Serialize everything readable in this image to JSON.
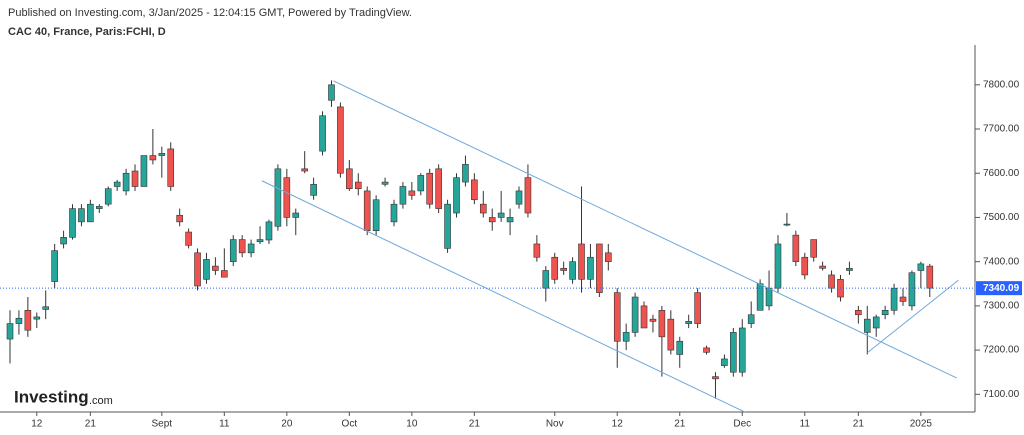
{
  "chart_data": {
    "type": "candlestick",
    "header": "Published on Investing.com, 3/Jan/2025 - 12:04:15 GMT, Powered by TradingView.",
    "title": "CAC 40, France, Paris:FCHI, D",
    "logo": "Investing",
    "logo_suffix": ".com",
    "categories": [
      null,
      null,
      null,
      "12",
      null,
      null,
      null,
      null,
      null,
      "21",
      null,
      null,
      null,
      null,
      null,
      null,
      null,
      "Sept",
      null,
      null,
      null,
      null,
      null,
      null,
      "11",
      null,
      null,
      null,
      null,
      null,
      null,
      "20",
      null,
      null,
      null,
      null,
      null,
      null,
      "Oct",
      null,
      null,
      null,
      null,
      null,
      null,
      "10",
      null,
      null,
      null,
      null,
      null,
      null,
      "21",
      null,
      null,
      null,
      null,
      null,
      null,
      null,
      null,
      "Nov",
      null,
      null,
      null,
      null,
      null,
      null,
      "12",
      null,
      null,
      null,
      null,
      null,
      null,
      "21",
      null,
      null,
      null,
      null,
      null,
      null,
      "Dec",
      null,
      null,
      null,
      null,
      null,
      null,
      "11",
      null,
      null,
      null,
      null,
      null,
      "21",
      null,
      null,
      null,
      null,
      null,
      null,
      "2025",
      null
    ],
    "open": [
      7225,
      7260,
      7290,
      7270,
      7292,
      7355,
      7440,
      7455,
      7490,
      7490,
      7520,
      7530,
      7570,
      7560,
      7605,
      7570,
      7640,
      7640,
      7655,
      7505,
      7467,
      7420,
      7360,
      7390,
      7380,
      7400,
      7450,
      7420,
      7445,
      7449,
      7480,
      7590,
      7500,
      7610,
      7550,
      7650,
      7765,
      7750,
      7610,
      7580,
      7560,
      7470,
      7575,
      7490,
      7530,
      7560,
      7560,
      7600,
      7610,
      7430,
      7510,
      7580,
      7585,
      7530,
      7500,
      7500,
      7490,
      7530,
      7590,
      7440,
      7340,
      7410,
      7385,
      7360,
      7440,
      7360,
      7440,
      7420,
      7330,
      7220,
      7240,
      7300,
      7270,
      7290,
      7270,
      7190,
      7260,
      7330,
      7205,
      7140,
      7165,
      7150,
      7150,
      7260,
      7290,
      7300,
      7340,
      7485,
      7460,
      7410,
      7450,
      7390,
      7370,
      7360,
      7380,
      7290,
      7240,
      7250,
      7280,
      7290,
      7320,
      7300,
      7380,
      7390
    ],
    "high": [
      7290,
      7290,
      7320,
      7285,
      7335,
      7440,
      7470,
      7530,
      7530,
      7540,
      7530,
      7570,
      7585,
      7610,
      7620,
      7640,
      7700,
      7660,
      7670,
      7520,
      7475,
      7430,
      7420,
      7410,
      7430,
      7460,
      7460,
      7450,
      7480,
      7495,
      7620,
      7610,
      7520,
      7650,
      7590,
      7740,
      7810,
      7760,
      7630,
      7600,
      7570,
      7550,
      7590,
      7540,
      7580,
      7580,
      7600,
      7610,
      7620,
      7540,
      7600,
      7640,
      7600,
      7560,
      7520,
      7560,
      7520,
      7570,
      7620,
      7460,
      7390,
      7420,
      7400,
      7410,
      7570,
      7440,
      7440,
      7440,
      7340,
      7260,
      7330,
      7310,
      7280,
      7300,
      7290,
      7230,
      7280,
      7340,
      7210,
      7150,
      7190,
      7250,
      7270,
      7310,
      7360,
      7380,
      7460,
      7510,
      7470,
      7420,
      7450,
      7400,
      7380,
      7370,
      7400,
      7300,
      7300,
      7280,
      7300,
      7350,
      7340,
      7380,
      7400,
      7395
    ],
    "low": [
      7170,
      7235,
      7230,
      7250,
      7270,
      7340,
      7430,
      7450,
      7480,
      7490,
      7510,
      7525,
      7560,
      7550,
      7560,
      7570,
      7620,
      7590,
      7560,
      7480,
      7430,
      7335,
      7350,
      7370,
      7365,
      7390,
      7410,
      7410,
      7440,
      7440,
      7470,
      7480,
      7460,
      7600,
      7540,
      7640,
      7750,
      7590,
      7560,
      7550,
      7460,
      7460,
      7570,
      7480,
      7520,
      7540,
      7550,
      7520,
      7510,
      7420,
      7500,
      7570,
      7530,
      7500,
      7470,
      7490,
      7460,
      7520,
      7500,
      7400,
      7310,
      7350,
      7370,
      7350,
      7330,
      7340,
      7320,
      7380,
      7160,
      7200,
      7230,
      7250,
      7240,
      7140,
      7190,
      7160,
      7250,
      7250,
      7190,
      7090,
      7160,
      7140,
      7140,
      7250,
      7290,
      7290,
      7330,
      7480,
      7390,
      7360,
      7400,
      7380,
      7330,
      7310,
      7370,
      7260,
      7190,
      7230,
      7270,
      7280,
      7300,
      7290,
      7340,
      7320
    ],
    "close": [
      7260,
      7272,
      7245,
      7275,
      7298,
      7425,
      7455,
      7520,
      7520,
      7530,
      7525,
      7565,
      7580,
      7600,
      7570,
      7640,
      7630,
      7645,
      7570,
      7490,
      7437,
      7345,
      7405,
      7380,
      7365,
      7450,
      7420,
      7440,
      7450,
      7490,
      7610,
      7500,
      7510,
      7605,
      7575,
      7730,
      7800,
      7600,
      7565,
      7565,
      7470,
      7540,
      7580,
      7530,
      7570,
      7550,
      7595,
      7530,
      7520,
      7530,
      7590,
      7620,
      7540,
      7510,
      7490,
      7510,
      7500,
      7560,
      7510,
      7410,
      7380,
      7360,
      7380,
      7400,
      7360,
      7410,
      7330,
      7400,
      7220,
      7240,
      7320,
      7250,
      7265,
      7230,
      7200,
      7220,
      7265,
      7260,
      7195,
      7135,
      7180,
      7240,
      7250,
      7280,
      7350,
      7340,
      7440,
      7485,
      7400,
      7370,
      7410,
      7385,
      7340,
      7320,
      7385,
      7280,
      7270,
      7275,
      7290,
      7340,
      7310,
      7375,
      7395,
      7340
    ],
    "up_color": "#26a69a",
    "down_color": "#ef5350",
    "last_price": 7340.09,
    "price_line_color": "#2962ff",
    "trendlines": [
      {
        "x": [
          36.2,
          106
        ],
        "y": [
          7809,
          7137
        ]
      },
      {
        "x": [
          28.2,
          82.9
        ],
        "y": [
          7583,
          7054
        ]
      },
      {
        "x": [
          96,
          106.2
        ],
        "y": [
          7194,
          7358
        ]
      }
    ],
    "trendline_color": "#6fa8dc",
    "ylim": [
      7060,
      7890
    ],
    "yticks": [
      {
        "value": 7100,
        "label": "7100.00"
      },
      {
        "value": 7200,
        "label": "7200.00"
      },
      {
        "value": 7300,
        "label": "7300.00"
      },
      {
        "value": 7400,
        "label": "7400.00"
      },
      {
        "value": 7500,
        "label": "7500.00"
      },
      {
        "value": 7600,
        "label": "7600.00"
      },
      {
        "value": 7700,
        "label": "7700.00"
      },
      {
        "value": 7800,
        "label": "7800.00"
      }
    ]
  }
}
